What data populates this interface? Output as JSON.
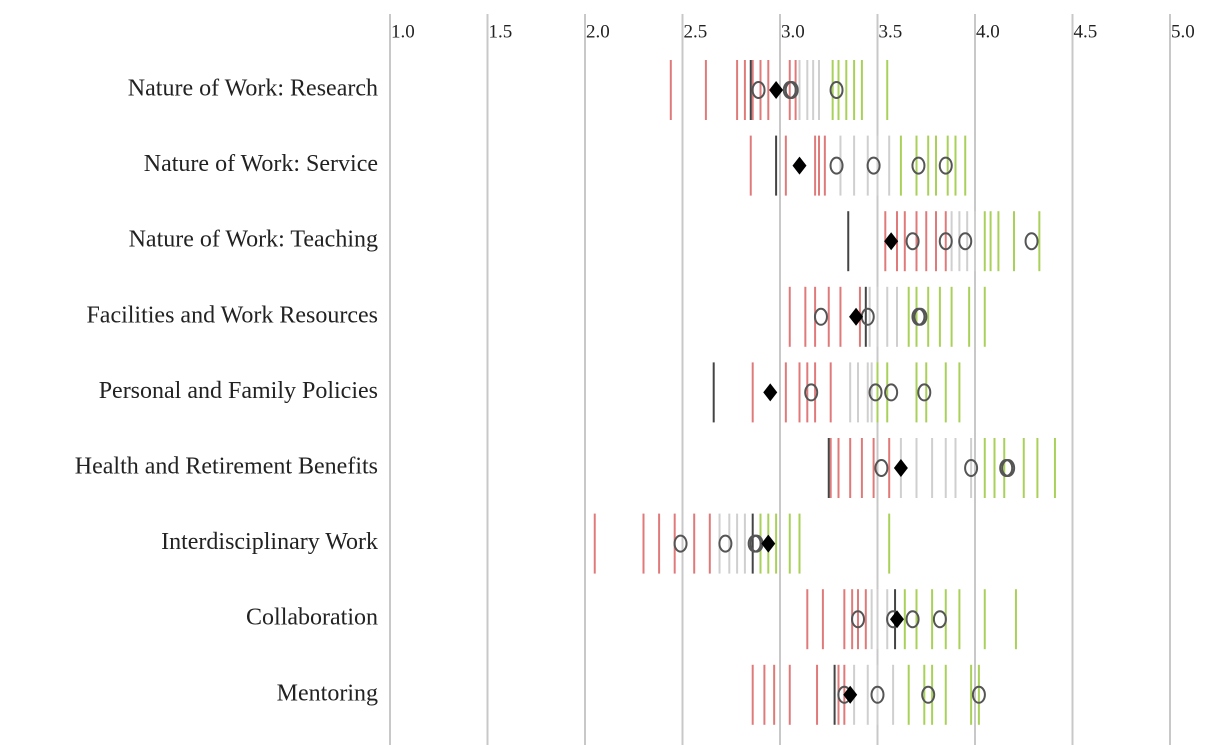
{
  "chart_data": {
    "type": "strip",
    "categories": [
      "Nature of Work: Research",
      "Nature of Work: Service",
      "Nature of Work: Teaching",
      "Facilities and Work Resources",
      "Personal and Family Policies",
      "Health and Retirement Benefits",
      "Interdisciplinary Work",
      "Collaboration",
      "Mentoring"
    ],
    "xlim": [
      1,
      5
    ],
    "xticks": [
      {
        "value": 1,
        "label": "1.0"
      },
      {
        "value": 1.5,
        "label": "1.5"
      },
      {
        "value": 2,
        "label": "2.0"
      },
      {
        "value": 2.5,
        "label": "2.5"
      },
      {
        "value": 3,
        "label": "3.0"
      },
      {
        "value": 3.5,
        "label": "3.5"
      },
      {
        "value": 4,
        "label": "4.0"
      },
      {
        "value": 4.5,
        "label": "4.5"
      },
      {
        "value": 5,
        "label": "5.0"
      }
    ],
    "grid": true,
    "colors": {
      "below": "#e07a7a",
      "near": "#cfcfcf",
      "above": "#a9d15a",
      "reference": "#444444",
      "marker": "#555555",
      "mean": "#000000"
    },
    "rows": [
      {
        "below": [
          2.44,
          2.62,
          2.78,
          2.82,
          2.86,
          2.9,
          2.94,
          3.05,
          3.08
        ],
        "near": [
          3.1,
          3.14,
          3.17,
          3.2
        ],
        "above": [
          3.27,
          3.3,
          3.34,
          3.38,
          3.42,
          3.55
        ],
        "reference": 2.85,
        "markers": [
          2.89,
          3.05,
          3.06,
          3.29
        ],
        "mean": 2.98
      },
      {
        "below": [
          2.85,
          3.03,
          3.18,
          3.2,
          3.23
        ],
        "near": [
          3.31,
          3.38,
          3.45,
          3.5,
          3.56
        ],
        "above": [
          3.62,
          3.7,
          3.76,
          3.8,
          3.86,
          3.9,
          3.95
        ],
        "reference": 2.98,
        "markers": [
          3.29,
          3.48,
          3.71,
          3.85
        ],
        "mean": 3.1
      },
      {
        "below": [
          3.54,
          3.6,
          3.64,
          3.7,
          3.75,
          3.8,
          3.85
        ],
        "near": [
          3.88,
          3.92,
          3.96,
          4.0
        ],
        "above": [
          4.05,
          4.08,
          4.12,
          4.2,
          4.33
        ],
        "reference": 3.35,
        "markers": [
          3.68,
          3.85,
          3.95,
          4.29
        ],
        "mean": 3.57
      },
      {
        "below": [
          3.05,
          3.13,
          3.18,
          3.25,
          3.31,
          3.41
        ],
        "near": [
          3.46,
          3.5,
          3.55,
          3.6
        ],
        "above": [
          3.66,
          3.7,
          3.76,
          3.82,
          3.88,
          3.97,
          4.05
        ],
        "reference": 3.44,
        "markers": [
          3.21,
          3.45,
          3.71,
          3.72
        ],
        "mean": 3.39
      },
      {
        "below": [
          2.86,
          3.03,
          3.1,
          3.14,
          3.18,
          3.26
        ],
        "near": [
          3.36,
          3.4,
          3.45,
          3.47
        ],
        "above": [
          3.5,
          3.55,
          3.7,
          3.75,
          3.85,
          3.92
        ],
        "reference": 2.66,
        "markers": [
          3.16,
          3.49,
          3.57,
          3.74
        ],
        "mean": 2.95
      },
      {
        "below": [
          3.26,
          3.3,
          3.36,
          3.42,
          3.48,
          3.56
        ],
        "near": [
          3.62,
          3.7,
          3.78,
          3.85,
          3.9,
          3.98
        ],
        "above": [
          4.05,
          4.1,
          4.15,
          4.25,
          4.32,
          4.41
        ],
        "reference": 3.25,
        "markers": [
          3.52,
          3.98,
          4.16,
          4.17
        ],
        "mean": 3.62
      },
      {
        "below": [
          2.05,
          2.3,
          2.38,
          2.46,
          2.56,
          2.64
        ],
        "near": [
          2.69,
          2.74,
          2.78,
          2.82
        ],
        "above": [
          2.9,
          2.94,
          2.98,
          3.05,
          3.1,
          3.56
        ],
        "reference": 2.86,
        "markers": [
          2.49,
          2.72,
          2.87,
          2.88
        ],
        "mean": 2.94
      },
      {
        "below": [
          3.14,
          3.22,
          3.33,
          3.37,
          3.4,
          3.44
        ],
        "near": [
          3.47,
          3.5,
          3.55
        ],
        "above": [
          3.64,
          3.7,
          3.78,
          3.85,
          3.92,
          4.05,
          4.21
        ],
        "reference": 3.59,
        "markers": [
          3.4,
          3.58,
          3.68,
          3.82
        ],
        "mean": 3.6
      },
      {
        "below": [
          2.86,
          2.92,
          2.97,
          3.05,
          3.19,
          3.3,
          3.33
        ],
        "near": [
          3.38,
          3.45,
          3.5,
          3.58
        ],
        "above": [
          3.66,
          3.74,
          3.78,
          3.85,
          3.98,
          4.02
        ],
        "reference": 3.28,
        "markers": [
          3.33,
          3.5,
          3.76,
          4.02
        ],
        "mean": 3.36
      }
    ]
  }
}
